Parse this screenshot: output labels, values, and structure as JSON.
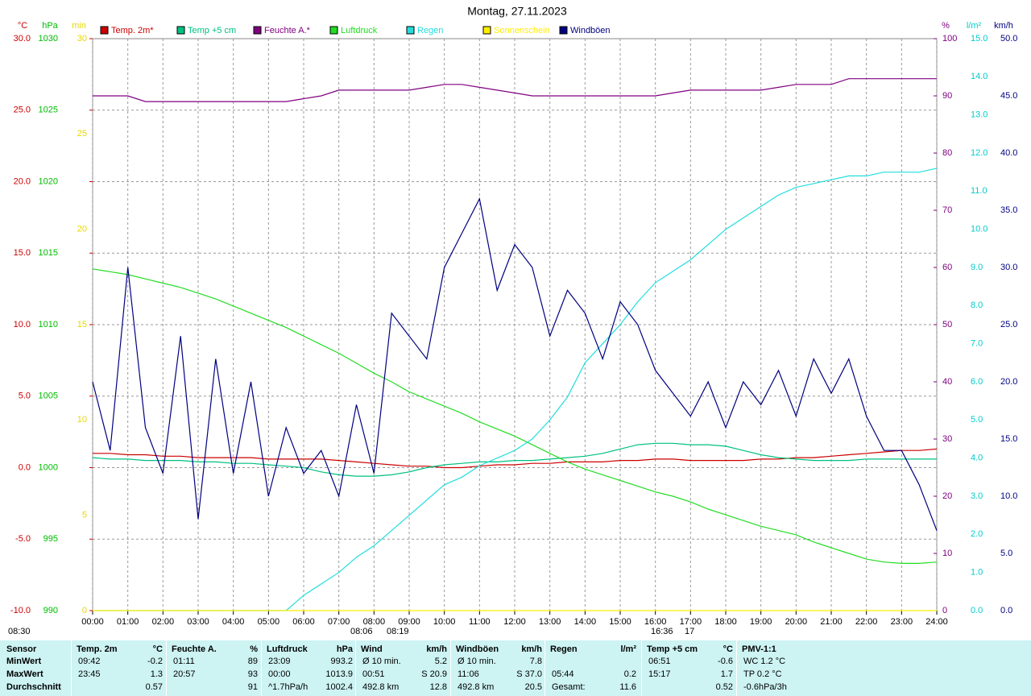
{
  "chart_data": {
    "type": "line",
    "title": "Montag, 27.11.2023",
    "x": [
      0,
      0.5,
      1,
      1.5,
      2,
      2.5,
      3,
      3.5,
      4,
      4.5,
      5,
      5.5,
      6,
      6.5,
      7,
      7.5,
      8,
      8.5,
      9,
      9.5,
      10,
      10.5,
      11,
      11.5,
      12,
      12.5,
      13,
      13.5,
      14,
      14.5,
      15,
      15.5,
      16,
      16.5,
      17,
      17.5,
      18,
      18.5,
      19,
      19.5,
      20,
      20.5,
      21,
      21.5,
      22,
      22.5,
      23,
      23.5,
      24
    ],
    "xlim": [
      0,
      24
    ],
    "xticks": [
      {
        "value": 0,
        "label": "00:00"
      },
      {
        "value": 1,
        "label": "01:00"
      },
      {
        "value": 2,
        "label": "02:00"
      },
      {
        "value": 3,
        "label": "03:00"
      },
      {
        "value": 4,
        "label": "04:00"
      },
      {
        "value": 5,
        "label": "05:00"
      },
      {
        "value": 6,
        "label": "06:00"
      },
      {
        "value": 7,
        "label": "07:00"
      },
      {
        "value": 8,
        "label": "08:00"
      },
      {
        "value": 9,
        "label": "09:00"
      },
      {
        "value": 10,
        "label": "10:00"
      },
      {
        "value": 11,
        "label": "11:00"
      },
      {
        "value": 12,
        "label": "12:00"
      },
      {
        "value": 13,
        "label": "13:00"
      },
      {
        "value": 14,
        "label": "14:00"
      },
      {
        "value": 15,
        "label": "15:00"
      },
      {
        "value": 16,
        "label": "16:00"
      },
      {
        "value": 17,
        "label": "17:00"
      },
      {
        "value": 18,
        "label": "18:00"
      },
      {
        "value": 19,
        "label": "19:00"
      },
      {
        "value": 20,
        "label": "20:00"
      },
      {
        "value": 21,
        "label": "21:00"
      },
      {
        "value": 22,
        "label": "22:00"
      },
      {
        "value": 23,
        "label": "23:00"
      },
      {
        "value": 24,
        "label": "24:00"
      }
    ],
    "grid": true,
    "axes": [
      {
        "unit": "°C",
        "color": "#cc0000",
        "ylim": [
          -10,
          30
        ],
        "yticks": [
          {
            "value": -10,
            "label": "-10.0"
          },
          {
            "value": -5,
            "label": "-5.0"
          },
          {
            "value": 0,
            "label": "0.0"
          },
          {
            "value": 5,
            "label": "5.0"
          },
          {
            "value": 10,
            "label": "10.0"
          },
          {
            "value": 15,
            "label": "15.0"
          },
          {
            "value": 20,
            "label": "20.0"
          },
          {
            "value": 25,
            "label": "25.0"
          },
          {
            "value": 30,
            "label": "30.0"
          }
        ]
      },
      {
        "unit": "hPa",
        "color": "#00bb00",
        "ylim": [
          990,
          1030
        ],
        "yticks": [
          990,
          995,
          1000,
          1005,
          1010,
          1015,
          1020,
          1025,
          1030
        ]
      },
      {
        "unit": "min",
        "color": "#e6d800",
        "ylim": [
          0,
          30
        ],
        "yticks": [
          0,
          5,
          10,
          15,
          20,
          25,
          30
        ]
      },
      {
        "unit": "%",
        "color": "#800080",
        "ylim": [
          0,
          100
        ],
        "yticks": [
          0,
          10,
          20,
          30,
          40,
          50,
          60,
          70,
          80,
          90,
          100
        ]
      },
      {
        "unit": "l/m²",
        "color": "#00cccc",
        "ylim": [
          0,
          15
        ],
        "yticks": [
          {
            "value": 0,
            "label": "0.0"
          },
          {
            "value": 1,
            "label": "1.0"
          },
          {
            "value": 2,
            "label": "2.0"
          },
          {
            "value": 3,
            "label": "3.0"
          },
          {
            "value": 4,
            "label": "4.0"
          },
          {
            "value": 5,
            "label": "5.0"
          },
          {
            "value": 6,
            "label": "6.0"
          },
          {
            "value": 7,
            "label": "7.0"
          },
          {
            "value": 8,
            "label": "8.0"
          },
          {
            "value": 9,
            "label": "9.0"
          },
          {
            "value": 10,
            "label": "10.0"
          },
          {
            "value": 11,
            "label": "11.0"
          },
          {
            "value": 12,
            "label": "12.0"
          },
          {
            "value": 13,
            "label": "13.0"
          },
          {
            "value": 14,
            "label": "14.0"
          },
          {
            "value": 15,
            "label": "15.0"
          }
        ]
      },
      {
        "unit": "km/h",
        "color": "#000080",
        "ylim": [
          0,
          50
        ],
        "yticks": [
          {
            "value": 0,
            "label": "0.0"
          },
          {
            "value": 5,
            "label": "5.0"
          },
          {
            "value": 10,
            "label": "10.0"
          },
          {
            "value": 15,
            "label": "15.0"
          },
          {
            "value": 20,
            "label": "20.0"
          },
          {
            "value": 25,
            "label": "25.0"
          },
          {
            "value": 30,
            "label": "30.0"
          },
          {
            "value": 35,
            "label": "35.0"
          },
          {
            "value": 40,
            "label": "40.0"
          },
          {
            "value": 45,
            "label": "45.0"
          },
          {
            "value": 50,
            "label": "50.0"
          }
        ]
      }
    ],
    "series": [
      {
        "name": "Temp. 2m*",
        "color": "#cc0000",
        "axis": 0,
        "values": [
          1.0,
          1.0,
          0.9,
          0.9,
          0.8,
          0.8,
          0.7,
          0.7,
          0.7,
          0.7,
          0.6,
          0.6,
          0.6,
          0.6,
          0.5,
          0.4,
          0.3,
          0.2,
          0.1,
          0.1,
          0.0,
          0.0,
          0.1,
          0.2,
          0.2,
          0.3,
          0.3,
          0.4,
          0.4,
          0.4,
          0.5,
          0.5,
          0.6,
          0.6,
          0.5,
          0.5,
          0.5,
          0.5,
          0.6,
          0.6,
          0.7,
          0.7,
          0.8,
          0.9,
          1.0,
          1.1,
          1.2,
          1.2,
          1.3
        ]
      },
      {
        "name": "Temp +5 cm",
        "color": "#00c080",
        "axis": 0,
        "values": [
          0.7,
          0.6,
          0.6,
          0.5,
          0.5,
          0.5,
          0.4,
          0.4,
          0.3,
          0.3,
          0.2,
          0.1,
          0.0,
          -0.3,
          -0.5,
          -0.6,
          -0.6,
          -0.5,
          -0.3,
          0.0,
          0.2,
          0.3,
          0.4,
          0.4,
          0.5,
          0.5,
          0.6,
          0.7,
          0.8,
          1.0,
          1.3,
          1.6,
          1.7,
          1.7,
          1.6,
          1.6,
          1.5,
          1.2,
          0.9,
          0.7,
          0.6,
          0.5,
          0.5,
          0.5,
          0.6,
          0.6,
          0.6,
          0.6,
          0.6
        ]
      },
      {
        "name": "Feuchte A.*",
        "color": "#800080",
        "axis": 3,
        "values": [
          90,
          90,
          90,
          89,
          89,
          89,
          89,
          89,
          89,
          89,
          89,
          89,
          89.5,
          90,
          91,
          91,
          91,
          91,
          91,
          91.5,
          92,
          92,
          91.5,
          91,
          90.5,
          90,
          90,
          90,
          90,
          90,
          90,
          90,
          90,
          90.5,
          91,
          91,
          91,
          91,
          91,
          91.5,
          92,
          92,
          92,
          93,
          93,
          93,
          93,
          93,
          93
        ]
      },
      {
        "name": "Luftdruck",
        "color": "#22dd22",
        "axis": 1,
        "values": [
          1013.9,
          1013.7,
          1013.5,
          1013.2,
          1012.9,
          1012.6,
          1012.2,
          1011.8,
          1011.3,
          1010.8,
          1010.3,
          1009.8,
          1009.2,
          1008.6,
          1008.0,
          1007.3,
          1006.6,
          1006.0,
          1005.3,
          1004.8,
          1004.3,
          1003.8,
          1003.2,
          1002.7,
          1002.2,
          1001.6,
          1001.0,
          1000.4,
          999.9,
          999.5,
          999.1,
          998.7,
          998.3,
          998.0,
          997.6,
          997.1,
          996.7,
          996.3,
          995.9,
          995.6,
          995.3,
          994.8,
          994.4,
          994.0,
          993.6,
          993.4,
          993.3,
          993.3,
          993.4
        ]
      },
      {
        "name": "Regen",
        "color": "#22dddd",
        "axis": 4,
        "values": [
          0,
          0,
          0,
          0,
          0,
          0,
          0,
          0,
          0,
          0,
          0,
          0,
          0.4,
          0.7,
          1.0,
          1.4,
          1.7,
          2.1,
          2.5,
          2.9,
          3.3,
          3.5,
          3.8,
          4.0,
          4.2,
          4.5,
          5.0,
          5.6,
          6.5,
          7.0,
          7.5,
          8.1,
          8.6,
          8.9,
          9.2,
          9.6,
          10.0,
          10.3,
          10.6,
          10.9,
          11.1,
          11.2,
          11.3,
          11.4,
          11.4,
          11.5,
          11.5,
          11.5,
          11.6
        ]
      },
      {
        "name": "Sonnenschein",
        "color": "#ffee00",
        "axis": 2,
        "values": [
          0,
          0,
          0,
          0,
          0,
          0,
          0,
          0,
          0,
          0,
          0,
          0,
          0,
          0,
          0,
          0,
          0,
          0,
          0,
          0,
          0,
          0,
          0,
          0,
          0,
          0,
          0,
          0,
          0,
          0,
          0,
          0,
          0,
          0,
          0,
          0,
          0,
          0,
          0,
          0,
          0,
          0,
          0,
          0,
          0,
          0,
          0,
          0,
          0
        ]
      },
      {
        "name": "Windböen",
        "color": "#000080",
        "axis": 5,
        "values": [
          20,
          14,
          30,
          16,
          12,
          24,
          8,
          22,
          12,
          20,
          10,
          16,
          12,
          14,
          10,
          18,
          12,
          26,
          24,
          22,
          30,
          33,
          36,
          28,
          32,
          30,
          24,
          28,
          26,
          22,
          27,
          25,
          21,
          19,
          17,
          20,
          16,
          20,
          18,
          21,
          17,
          22,
          19,
          22,
          17,
          14,
          14,
          11,
          7
        ]
      }
    ],
    "annotations": [
      "08:30",
      "08:06",
      "08:19",
      "16:36",
      "17"
    ]
  },
  "table": {
    "row_labels": [
      "Sensor",
      "MinWert",
      "MaxWert",
      "Durchschnitt"
    ],
    "groups": [
      {
        "title": "Temp. 2m",
        "unit": "°C",
        "rows": [
          [
            "09:42",
            "-0.2"
          ],
          [
            "23:45",
            "1.3"
          ],
          [
            null,
            "0.57"
          ]
        ]
      },
      {
        "title": "Feuchte A.",
        "unit": "%",
        "rows": [
          [
            "01:11",
            "89"
          ],
          [
            "20:57",
            "93"
          ],
          [
            null,
            "91"
          ]
        ]
      },
      {
        "title": "Luftdruck",
        "unit": "hPa",
        "rows": [
          [
            "23:09",
            "993.2"
          ],
          [
            "00:00",
            "1013.9"
          ],
          [
            "^1.7hPa/h",
            "1002.4"
          ]
        ]
      },
      {
        "title": "Wind",
        "unit": "km/h",
        "rows": [
          [
            "Ø 10 min.",
            "5.2"
          ],
          [
            "00:51",
            "S 20.9"
          ],
          [
            "492.8 km",
            "12.8"
          ]
        ]
      },
      {
        "title": "Windböen",
        "unit": "km/h",
        "rows": [
          [
            "Ø 10 min.",
            "7.8"
          ],
          [
            "11:06",
            "S 37.0"
          ],
          [
            "492.8 km",
            "20.5"
          ]
        ]
      },
      {
        "title": "Regen",
        "unit": "l/m²",
        "rows": [
          [
            null,
            null
          ],
          [
            "05:44",
            "0.2"
          ],
          [
            "Gesamt:",
            "11.6"
          ]
        ]
      },
      {
        "title": "Temp +5 cm",
        "unit": "°C",
        "rows": [
          [
            "06:51",
            "-0.6"
          ],
          [
            "15:17",
            "1.7"
          ],
          [
            null,
            "0.52"
          ]
        ]
      },
      {
        "title": "PMV-1:1",
        "unit": null,
        "rows": [
          [
            "WC 1.2 °C"
          ],
          [
            "TP 0.2 °C"
          ],
          [
            "-0.6hPa/3h"
          ]
        ]
      }
    ]
  }
}
